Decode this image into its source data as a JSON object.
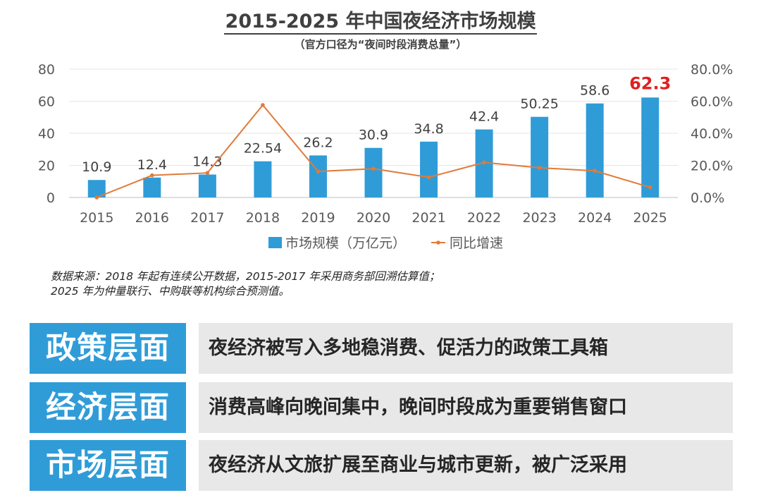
{
  "header": {
    "title": "2015-2025 年中国夜经济市场规模",
    "subtitle": "（官方口径为“夜间时段消费总量”）"
  },
  "chart_data": {
    "type": "bar",
    "categories": [
      "2015",
      "2016",
      "2017",
      "2018",
      "2019",
      "2020",
      "2021",
      "2022",
      "2023",
      "2024",
      "2025"
    ],
    "series": [
      {
        "name": "市场规模（万亿元）",
        "type": "bar",
        "axis": "left",
        "values": [
          10.9,
          12.4,
          14.3,
          22.54,
          26.2,
          30.9,
          34.8,
          42.4,
          50.25,
          58.6,
          62.3
        ],
        "labels": [
          "10.9",
          "12.4",
          "14.3",
          "22.54",
          "26.2",
          "30.9",
          "34.8",
          "42.4",
          "50.25",
          "58.6",
          "62.3"
        ],
        "color": "#2f9cd8"
      },
      {
        "name": "同比增速",
        "type": "line",
        "axis": "right",
        "values": [
          0.0,
          13.8,
          15.3,
          57.6,
          16.2,
          17.9,
          12.6,
          21.8,
          18.5,
          16.6,
          6.3
        ],
        "color": "#e07b39"
      }
    ],
    "y_left": {
      "ylim": [
        0,
        80
      ],
      "ticks": [
        "0",
        "20",
        "40",
        "60",
        "80"
      ]
    },
    "y_right": {
      "ylim": [
        0,
        80
      ],
      "ticks": [
        "0.0%",
        "20.0%",
        "40.0%",
        "60.0%",
        "80.0%"
      ]
    },
    "highlight": {
      "index": 10,
      "color": "#e02020"
    },
    "legend_position": "bottom",
    "grid": true
  },
  "note": {
    "line1": "数据来源：2018 年起有连续公开数据，2015-2017 年采用商务部回溯估算值；",
    "line2": "2025 年为仲量联行、中购联等机构综合预测值。"
  },
  "rows": [
    {
      "head": "政策层面",
      "desc": "夜经济被写入多地稳消费、促活力的政策工具箱"
    },
    {
      "head": "经济层面",
      "desc": "消费高峰向晚间集中，晚间时段成为重要销售窗口"
    },
    {
      "head": "市场层面",
      "desc": "夜经济从文旅扩展至商业与城市更新，被广泛采用"
    }
  ]
}
